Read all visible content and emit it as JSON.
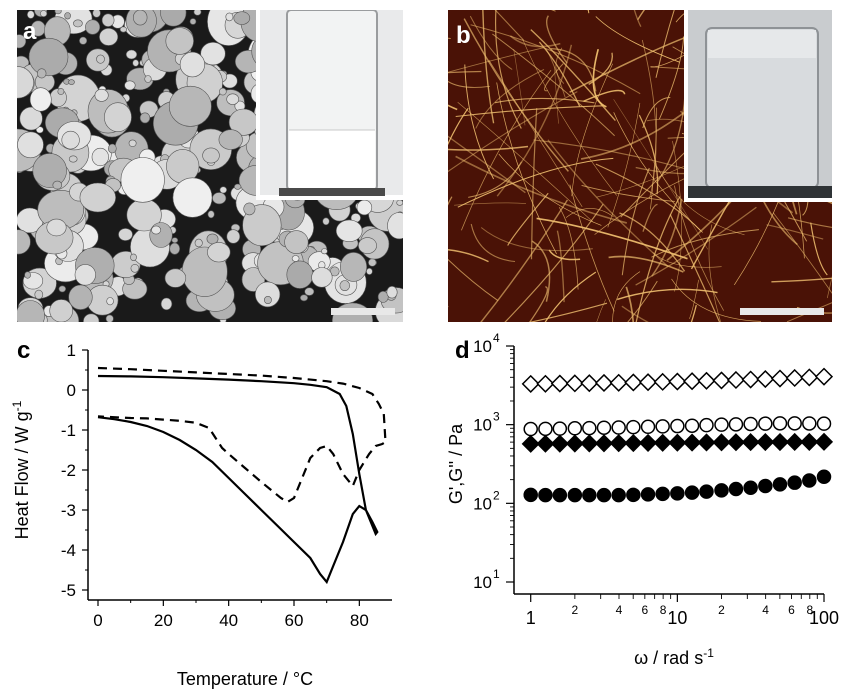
{
  "panels": {
    "a": {
      "label": "a",
      "colors": {
        "background": "#1a1a1a",
        "droplet": "#d6d6d6",
        "inset_bg": "#e9eaeb"
      }
    },
    "b": {
      "label": "b",
      "colors": {
        "background": "#4a1206",
        "fiber": "#f0c070",
        "inset_bg": "#c9cccf"
      }
    },
    "c": {
      "label": "c"
    },
    "d": {
      "label": "d"
    }
  },
  "chart_data": [
    {
      "type": "line",
      "panel": "c",
      "xlabel": "Temperature / °C",
      "ylabel": "Heat Flow / W g",
      "ylabel_superscript": "-1",
      "xlim": [
        0,
        90
      ],
      "ylim": [
        -5,
        1
      ],
      "xticks": [
        "0",
        "20",
        "40",
        "60",
        "80"
      ],
      "yticks": [
        "1",
        "0",
        "-1",
        "-2",
        "-3",
        "-4",
        "-5"
      ],
      "series": [
        {
          "style": "solid",
          "x": [
            0,
            10,
            20,
            30,
            40,
            50,
            60,
            65,
            70,
            74,
            76,
            78,
            80,
            82,
            83.5,
            85,
            85.5,
            84,
            82,
            80,
            78,
            75,
            72,
            70,
            68,
            65,
            60,
            55,
            50,
            45,
            40,
            35,
            30,
            25,
            20,
            15,
            10,
            5,
            0
          ],
          "y": [
            0.35,
            0.34,
            0.32,
            0.29,
            0.26,
            0.22,
            0.17,
            0.13,
            0.07,
            -0.1,
            -0.4,
            -1.1,
            -2.1,
            -3.0,
            -3.3,
            -3.6,
            -3.55,
            -3.3,
            -3.0,
            -2.9,
            -3.1,
            -3.8,
            -4.4,
            -4.8,
            -4.6,
            -4.2,
            -3.8,
            -3.4,
            -3.0,
            -2.6,
            -2.2,
            -1.8,
            -1.5,
            -1.25,
            -1.05,
            -0.9,
            -0.8,
            -0.73,
            -0.68
          ]
        },
        {
          "style": "dashed",
          "x": [
            0,
            10,
            20,
            30,
            40,
            50,
            60,
            70,
            75,
            80,
            84,
            86,
            87.5,
            88,
            87,
            85,
            83,
            80,
            78,
            75,
            72,
            70,
            68,
            65,
            62,
            60,
            58,
            56,
            53,
            50,
            45,
            40,
            38,
            36,
            34,
            30,
            25,
            20,
            15,
            10,
            5,
            0
          ],
          "y": [
            0.55,
            0.52,
            0.48,
            0.44,
            0.4,
            0.36,
            0.3,
            0.22,
            0.16,
            0.05,
            -0.1,
            -0.35,
            -0.6,
            -1.3,
            -1.35,
            -1.4,
            -1.6,
            -2.0,
            -2.4,
            -2.1,
            -1.6,
            -1.4,
            -1.45,
            -1.7,
            -2.3,
            -2.7,
            -2.8,
            -2.7,
            -2.5,
            -2.3,
            -1.95,
            -1.6,
            -1.45,
            -1.2,
            -0.95,
            -0.82,
            -0.77,
            -0.74,
            -0.71,
            -0.7,
            -0.68,
            -0.66
          ]
        }
      ]
    },
    {
      "type": "scatter",
      "panel": "d",
      "xscale": "log",
      "yscale": "log",
      "xlabel": "ω  / rad s",
      "xlabel_superscript": "-1",
      "ylabel": "G',G'' / Pa",
      "xlim": [
        0.9,
        100
      ],
      "ylim": [
        10,
        10000
      ],
      "xticks_major": [
        "1",
        "10",
        "100"
      ],
      "xticks_minor_labels": [
        "2",
        "4",
        "6",
        "8",
        "2",
        "4",
        "6",
        "8"
      ],
      "yticks_major": [
        "10",
        "10",
        "10",
        "10"
      ],
      "yticks_exponents": [
        "1",
        "2",
        "3",
        "4"
      ],
      "series": [
        {
          "marker": "diamond-open",
          "x": [
            1,
            1.26,
            1.58,
            2,
            2.51,
            3.16,
            3.98,
            5.01,
            6.31,
            7.94,
            10,
            12.6,
            15.8,
            20,
            25.1,
            31.6,
            39.8,
            50.1,
            63.1,
            79.4,
            100
          ],
          "y": [
            3300,
            3310,
            3330,
            3350,
            3370,
            3390,
            3410,
            3440,
            3470,
            3500,
            3530,
            3570,
            3610,
            3650,
            3700,
            3750,
            3800,
            3860,
            3920,
            3990,
            4080
          ]
        },
        {
          "marker": "circle-open",
          "x": [
            1,
            1.26,
            1.58,
            2,
            2.51,
            3.16,
            3.98,
            5.01,
            6.31,
            7.94,
            10,
            12.6,
            15.8,
            20,
            25.1,
            31.6,
            39.8,
            50.1,
            63.1,
            79.4,
            100
          ],
          "y": [
            880,
            885,
            890,
            900,
            905,
            915,
            920,
            930,
            940,
            950,
            960,
            970,
            985,
            1000,
            1010,
            1020,
            1030,
            1040,
            1040,
            1035,
            1030
          ]
        },
        {
          "marker": "diamond-filled",
          "x": [
            1,
            1.26,
            1.58,
            2,
            2.51,
            3.16,
            3.98,
            5.01,
            6.31,
            7.94,
            10,
            12.6,
            15.8,
            20,
            25.1,
            31.6,
            39.8,
            50.1,
            63.1,
            79.4,
            100
          ],
          "y": [
            570,
            572,
            574,
            576,
            578,
            580,
            582,
            584,
            586,
            588,
            590,
            592,
            594,
            596,
            598,
            600,
            601,
            602,
            603,
            604,
            605
          ]
        },
        {
          "marker": "circle-filled",
          "x": [
            1,
            1.26,
            1.58,
            2,
            2.51,
            3.16,
            3.98,
            5.01,
            6.31,
            7.94,
            10,
            12.6,
            15.8,
            20,
            25.1,
            31.6,
            39.8,
            50.1,
            63.1,
            79.4,
            100
          ],
          "y": [
            128,
            127,
            127,
            127,
            127,
            127,
            127,
            128,
            130,
            132,
            134,
            137,
            141,
            146,
            152,
            158,
            166,
            174,
            183,
            195,
            218
          ]
        }
      ]
    }
  ]
}
